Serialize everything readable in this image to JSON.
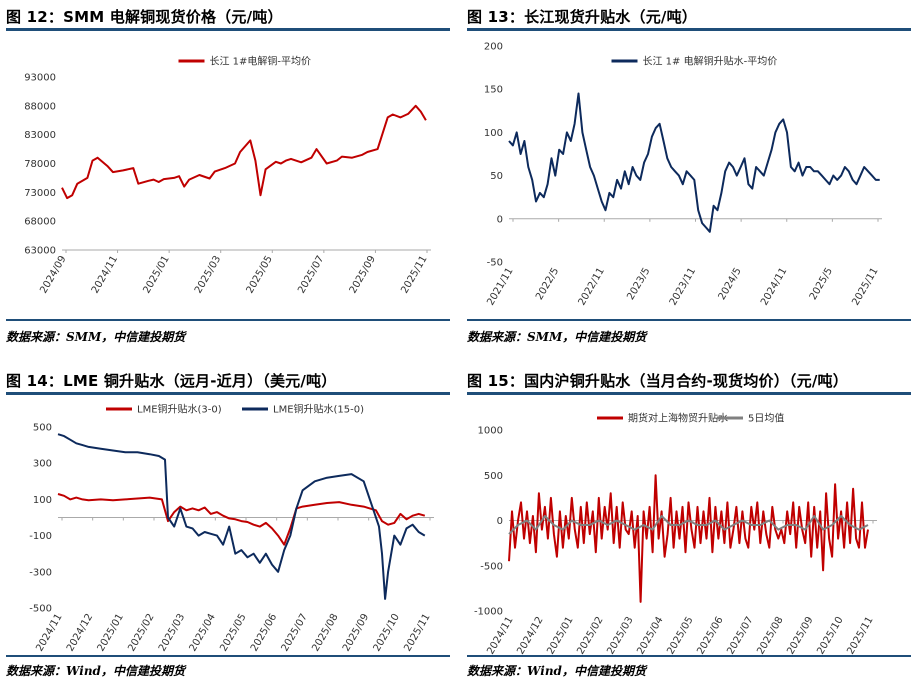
{
  "panels": [
    {
      "title": "图 12：SMM 电解铜现货价格（元/吨）",
      "source": "数据来源：SMM，中信建投期货",
      "chart_data": {
        "type": "line",
        "ylim": [
          63000,
          93000
        ],
        "yticks": [
          "93000",
          "88000",
          "83000",
          "78000",
          "73000",
          "68000",
          "63000"
        ],
        "xticks": [
          "2024/09",
          "2024/11",
          "2025/01",
          "2025/03",
          "2025/05",
          "2025/07",
          "2025/09",
          "2025/11"
        ],
        "xrange": [
          0,
          14.5
        ],
        "legend": "top-center",
        "series": [
          {
            "name": "长江 1#电解铜-平均价",
            "color": "#c00000",
            "x": [
              0,
              0.2,
              0.4,
              0.6,
              1.0,
              1.2,
              1.4,
              1.8,
              2.0,
              2.4,
              2.8,
              3.0,
              3.4,
              3.6,
              3.8,
              4.0,
              4.4,
              4.6,
              4.8,
              5.0,
              5.4,
              5.8,
              6.0,
              6.4,
              6.8,
              7.0,
              7.4,
              7.6,
              7.8,
              8.0,
              8.4,
              8.6,
              8.8,
              9.0,
              9.4,
              9.8,
              10.0,
              10.4,
              10.8,
              11.0,
              11.4,
              11.8,
              12.0,
              12.4,
              12.8,
              13.0,
              13.3,
              13.6,
              13.9,
              14.1,
              14.3
            ],
            "y": [
              73800,
              72000,
              72500,
              74500,
              75500,
              78500,
              79000,
              77500,
              76500,
              76800,
              77200,
              74500,
              75000,
              75200,
              74800,
              75300,
              75500,
              75800,
              74000,
              75200,
              76000,
              75400,
              76600,
              77200,
              78000,
              80000,
              82000,
              78500,
              72500,
              77000,
              78300,
              78000,
              78500,
              78800,
              78200,
              79000,
              80500,
              78000,
              78500,
              79200,
              79000,
              79500,
              80000,
              80500,
              86000,
              86500,
              86000,
              86600,
              88000,
              87000,
              85500
            ]
          }
        ]
      }
    },
    {
      "title": "图 13：长江现货升贴水（元/吨）",
      "source": "数据来源：SMM，中信建投期货",
      "chart_data": {
        "type": "line",
        "ylim": [
          -50,
          200
        ],
        "yticks": [
          "200",
          "150",
          "100",
          "50",
          "0",
          "-50"
        ],
        "xticks": [
          "2021/11",
          "2022/5",
          "2022/11",
          "2023/5",
          "2023/11",
          "2024/5",
          "2024/11",
          "2025/5",
          "2025/11"
        ],
        "xrange": [
          0,
          48.3
        ],
        "legend": "top-center",
        "series": [
          {
            "name": "长江 1# 电解铜升贴水-平均价",
            "color": "#0d2a5c",
            "x": [
              0,
              0.5,
              1,
              1.5,
              2,
              2.5,
              3,
              3.5,
              4,
              4.5,
              5,
              5.5,
              6,
              6.5,
              7,
              7.5,
              8,
              8.5,
              9,
              9.5,
              10,
              10.5,
              11,
              11.5,
              12,
              12.5,
              13,
              13.5,
              14,
              14.5,
              15,
              15.5,
              16,
              16.5,
              17,
              17.5,
              18,
              18.5,
              19,
              19.5,
              20,
              20.5,
              21,
              21.5,
              22,
              22.5,
              23,
              23.5,
              24,
              24.5,
              25,
              25.5,
              26,
              26.5,
              27,
              27.5,
              28,
              28.5,
              29,
              29.5,
              30,
              30.5,
              31,
              31.5,
              32,
              32.5,
              33,
              33.5,
              34,
              34.5,
              35,
              35.5,
              36,
              36.5,
              37,
              37.5,
              38,
              38.5,
              39,
              39.5,
              40,
              40.5,
              41,
              41.5,
              42,
              42.5,
              43,
              43.5,
              44,
              44.5,
              45,
              45.5,
              46,
              46.5,
              47,
              47.5,
              48
            ],
            "y": [
              90,
              85,
              100,
              75,
              90,
              60,
              45,
              20,
              30,
              25,
              40,
              70,
              50,
              80,
              75,
              100,
              90,
              110,
              145,
              100,
              80,
              60,
              50,
              35,
              20,
              10,
              30,
              25,
              45,
              35,
              55,
              40,
              60,
              50,
              45,
              65,
              75,
              95,
              105,
              110,
              90,
              70,
              60,
              55,
              50,
              40,
              55,
              50,
              45,
              10,
              -5,
              -10,
              -15,
              15,
              10,
              30,
              55,
              65,
              60,
              50,
              60,
              70,
              40,
              35,
              60,
              55,
              50,
              65,
              80,
              100,
              110,
              115,
              100,
              60,
              55,
              65,
              50,
              60,
              60,
              55,
              55,
              50,
              45,
              40,
              50,
              45,
              50,
              60,
              55,
              45,
              40,
              50,
              60,
              55,
              50,
              45,
              45
            ]
          }
        ]
      }
    },
    {
      "title": "图 14：LME 铜升贴水（远月-近月）（美元/吨）",
      "source": "数据来源：Wind，中信建投期货",
      "chart_data": {
        "type": "line",
        "ylim": [
          -500,
          500
        ],
        "yticks": [
          "500",
          "300",
          "100",
          "-100",
          "-300",
          "-500"
        ],
        "xticks": [
          "2024/11",
          "2024/12",
          "2025/01",
          "2025/02",
          "2025/03",
          "2025/04",
          "2025/05",
          "2025/06",
          "2025/07",
          "2025/08",
          "2025/09",
          "2025/10",
          "2025/11"
        ],
        "xrange": [
          0,
          12.3
        ],
        "legend": "top-center",
        "series": [
          {
            "name": "LME铜升贴水(3-0)",
            "color": "#c00000",
            "x": [
              0,
              0.2,
              0.4,
              0.6,
              0.8,
              1.0,
              1.4,
              1.8,
              2.2,
              2.6,
              3.0,
              3.4,
              3.6,
              3.8,
              4.0,
              4.2,
              4.4,
              4.6,
              4.8,
              5.0,
              5.2,
              5.4,
              5.6,
              5.8,
              6.0,
              6.2,
              6.4,
              6.6,
              6.8,
              7.0,
              7.2,
              7.4,
              7.6,
              7.8,
              8.0,
              8.4,
              8.8,
              9.2,
              9.6,
              10.0,
              10.2,
              10.4,
              10.6,
              10.8,
              11.0,
              11.2,
              11.4,
              11.6,
              11.8,
              12.0
            ],
            "y": [
              130,
              120,
              100,
              110,
              100,
              95,
              100,
              95,
              100,
              105,
              110,
              100,
              -20,
              30,
              60,
              40,
              50,
              40,
              55,
              20,
              30,
              10,
              -5,
              -10,
              -20,
              -25,
              -40,
              -50,
              -30,
              -60,
              -100,
              -150,
              -60,
              50,
              60,
              70,
              80,
              85,
              70,
              60,
              50,
              40,
              -20,
              -40,
              -30,
              20,
              -10,
              10,
              20,
              10
            ]
          },
          {
            "name": "LME铜升贴水(15-0)",
            "color": "#0d2a5c",
            "x": [
              0,
              0.2,
              0.4,
              0.6,
              0.8,
              1.0,
              1.4,
              1.8,
              2.2,
              2.6,
              3.0,
              3.3,
              3.5,
              3.6,
              3.8,
              4.0,
              4.2,
              4.4,
              4.6,
              4.8,
              5.0,
              5.2,
              5.4,
              5.6,
              5.8,
              6.0,
              6.2,
              6.4,
              6.6,
              6.8,
              7.0,
              7.2,
              7.4,
              7.6,
              7.8,
              8.0,
              8.4,
              8.8,
              9.2,
              9.6,
              10.0,
              10.3,
              10.5,
              10.6,
              10.7,
              10.8,
              11.0,
              11.2,
              11.4,
              11.6,
              11.8,
              12.0
            ],
            "y": [
              460,
              450,
              430,
              410,
              400,
              390,
              380,
              370,
              360,
              360,
              350,
              340,
              320,
              0,
              -50,
              50,
              -50,
              -60,
              -100,
              -80,
              -90,
              -100,
              -150,
              -50,
              -200,
              -180,
              -220,
              -200,
              -250,
              -200,
              -260,
              -300,
              -180,
              -100,
              50,
              150,
              200,
              220,
              230,
              240,
              200,
              50,
              -50,
              -200,
              -450,
              -300,
              -100,
              -150,
              -60,
              -40,
              -80,
              -100
            ]
          }
        ]
      }
    },
    {
      "title": "图 15：国内沪铜升贴水（当月合约-现货均价）（元/吨）",
      "source": "数据来源：Wind，中信建投期货",
      "chart_data": {
        "type": "line",
        "ylim": [
          -1000,
          1000
        ],
        "yticks": [
          "1000",
          "500",
          "0",
          "-500",
          "-1000"
        ],
        "xticks": [
          "2024/11",
          "2024/12",
          "2025/01",
          "2025/02",
          "2025/03",
          "2025/04",
          "2025/05",
          "2025/06",
          "2025/07",
          "2025/08",
          "2025/09",
          "2025/10",
          "2025/11"
        ],
        "xrange": [
          0,
          12.3
        ],
        "legend": "top-center",
        "series": [
          {
            "name": "期货对上海物贸升贴水",
            "color": "#c00000",
            "x": [
              0,
              0.1,
              0.2,
              0.3,
              0.4,
              0.5,
              0.6,
              0.7,
              0.8,
              0.9,
              1.0,
              1.1,
              1.2,
              1.3,
              1.4,
              1.5,
              1.6,
              1.7,
              1.8,
              1.9,
              2.0,
              2.1,
              2.2,
              2.3,
              2.4,
              2.5,
              2.6,
              2.7,
              2.8,
              2.9,
              3.0,
              3.1,
              3.2,
              3.3,
              3.4,
              3.5,
              3.6,
              3.7,
              3.8,
              3.9,
              4.0,
              4.1,
              4.2,
              4.3,
              4.4,
              4.5,
              4.6,
              4.7,
              4.8,
              4.9,
              5.0,
              5.1,
              5.2,
              5.3,
              5.4,
              5.5,
              5.6,
              5.7,
              5.8,
              5.9,
              6.0,
              6.1,
              6.2,
              6.3,
              6.4,
              6.5,
              6.6,
              6.7,
              6.8,
              6.9,
              7.0,
              7.1,
              7.2,
              7.3,
              7.4,
              7.5,
              7.6,
              7.7,
              7.8,
              7.9,
              8.0,
              8.1,
              8.2,
              8.3,
              8.4,
              8.5,
              8.6,
              8.7,
              8.8,
              8.9,
              9.0,
              9.1,
              9.2,
              9.3,
              9.4,
              9.5,
              9.6,
              9.7,
              9.8,
              9.9,
              10.0,
              10.1,
              10.2,
              10.3,
              10.4,
              10.5,
              10.6,
              10.7,
              10.8,
              10.9,
              11.0,
              11.1,
              11.2,
              11.3,
              11.4,
              11.5,
              11.6,
              11.7,
              11.8,
              11.9,
              12.0
            ],
            "y": [
              -450,
              100,
              -300,
              0,
              200,
              -200,
              100,
              -250,
              50,
              -350,
              300,
              -100,
              150,
              -200,
              250,
              -150,
              -400,
              100,
              -300,
              50,
              -200,
              250,
              -100,
              -300,
              150,
              -250,
              200,
              -150,
              100,
              -350,
              250,
              -200,
              150,
              -100,
              300,
              -250,
              150,
              -300,
              200,
              -100,
              -150,
              100,
              -300,
              50,
              -900,
              100,
              -200,
              150,
              -350,
              500,
              -200,
              100,
              -400,
              -150,
              250,
              -300,
              100,
              -200,
              150,
              -350,
              200,
              -100,
              -300,
              150,
              -250,
              100,
              -200,
              250,
              -350,
              150,
              -200,
              100,
              -250,
              200,
              -300,
              -100,
              150,
              -250,
              100,
              -200,
              -300,
              150,
              -100,
              200,
              -250,
              100,
              -150,
              -300,
              150,
              -100,
              -200,
              -100,
              -250,
              100,
              -150,
              200,
              -300,
              150,
              -100,
              -250,
              200,
              -400,
              150,
              -300,
              100,
              -550,
              300,
              -200,
              -400,
              400,
              -200,
              100,
              -300,
              200,
              -250,
              350,
              -200,
              -300,
              200,
              -300,
              -100
            ]
          },
          {
            "name": "5日均值",
            "color": "#808080",
            "x": [
              0,
              0.3,
              0.6,
              0.9,
              1.2,
              1.5,
              1.8,
              2.1,
              2.4,
              2.7,
              3.0,
              3.3,
              3.6,
              3.9,
              4.2,
              4.5,
              4.8,
              5.1,
              5.4,
              5.7,
              6.0,
              6.3,
              6.6,
              6.9,
              7.2,
              7.5,
              7.8,
              8.1,
              8.4,
              8.7,
              9.0,
              9.3,
              9.6,
              9.9,
              10.2,
              10.5,
              10.8,
              11.1,
              11.4,
              11.7,
              12.0
            ],
            "y": [
              -150,
              -50,
              0,
              -100,
              50,
              -50,
              -100,
              0,
              -50,
              -50,
              0,
              -50,
              0,
              -50,
              -100,
              -50,
              -100,
              50,
              -50,
              -50,
              0,
              -50,
              -50,
              0,
              -100,
              -50,
              0,
              -50,
              -50,
              0,
              -100,
              -50,
              -50,
              -100,
              50,
              -100,
              -50,
              50,
              -50,
              -100,
              -50
            ]
          }
        ]
      }
    }
  ]
}
